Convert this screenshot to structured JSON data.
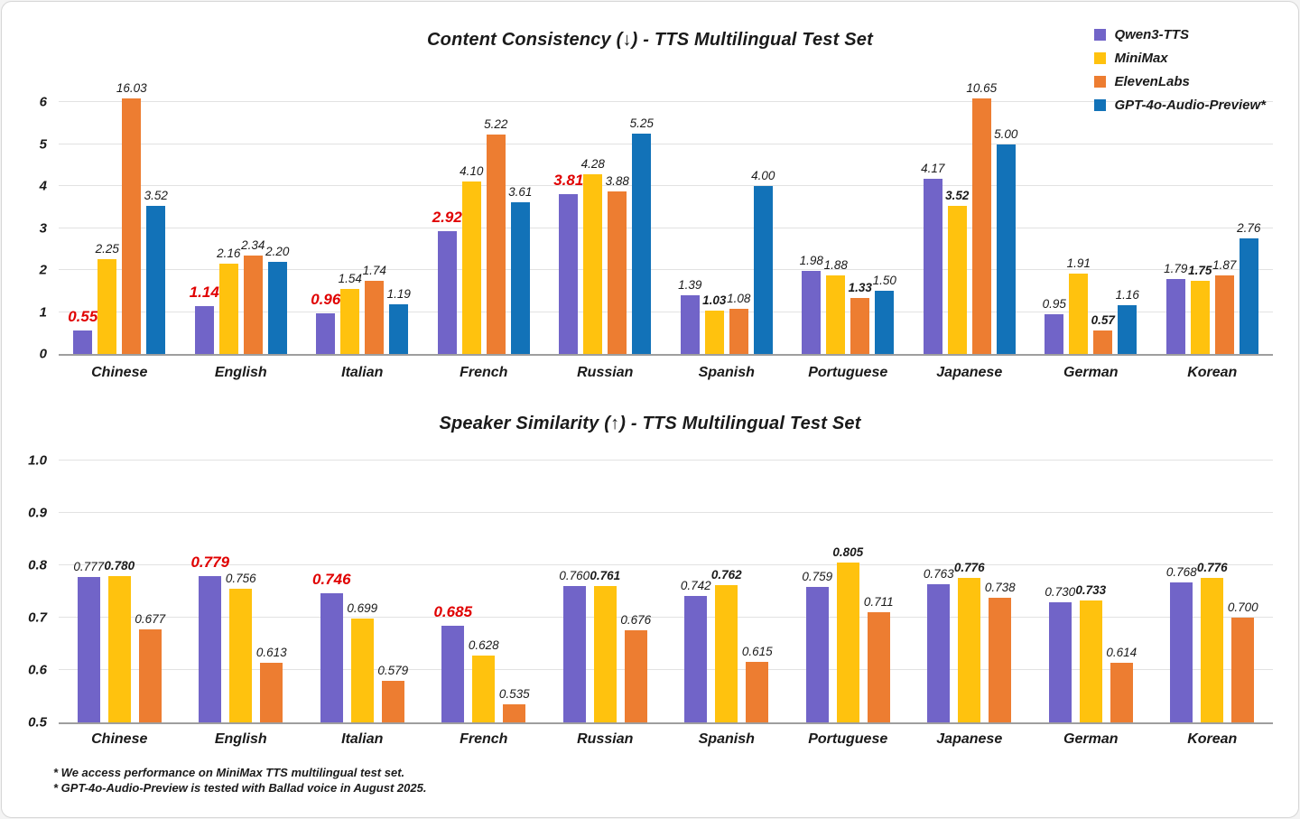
{
  "page": {
    "background": "#ffffff",
    "border_color": "#d6d6d6"
  },
  "colors": {
    "qwen3_tts": "#7164C8",
    "minimax": "#FFC20E",
    "elevenlabs": "#ED7D31",
    "gpt4o_audio_preview": "#1272B8",
    "highlight_red": "#e00000",
    "gridline": "#e2e2e2",
    "axis_line": "#9e9e9e",
    "text": "#1a1a1a"
  },
  "legend": {
    "items": [
      {
        "label": "Qwen3-TTS",
        "color": "#7164C8"
      },
      {
        "label": "MiniMax",
        "color": "#FFC20E"
      },
      {
        "label": "ElevenLabs",
        "color": "#ED7D31"
      },
      {
        "label": "GPT-4o-Audio-Preview*",
        "color": "#1272B8"
      }
    ],
    "position": "top-right"
  },
  "footnotes": [
    "* We access performance on MiniMax TTS multilingual test set.",
    "* GPT-4o-Audio-Preview is tested with Ballad voice in August 2025."
  ],
  "chart_data": [
    {
      "type": "bar",
      "title": "Content Consistency (↓) - TTS Multilingual Test Set",
      "xlabel": "",
      "ylabel": "",
      "grid": true,
      "categories": [
        "Chinese",
        "English",
        "Italian",
        "French",
        "Russian",
        "Spanish",
        "Portuguese",
        "Japanese",
        "German",
        "Korean"
      ],
      "series": [
        {
          "name": "Qwen3-TTS",
          "color": "#7164C8",
          "values": [
            0.55,
            1.14,
            0.96,
            2.92,
            3.81,
            1.39,
            1.98,
            4.17,
            0.95,
            1.79
          ],
          "label_styles": [
            "red",
            "red",
            "red",
            "red",
            "red",
            "normal",
            "normal",
            "normal",
            "normal",
            "normal"
          ]
        },
        {
          "name": "MiniMax",
          "color": "#FFC20E",
          "values": [
            2.25,
            2.16,
            1.54,
            4.1,
            4.28,
            1.03,
            1.88,
            3.52,
            1.91,
            1.75
          ],
          "label_styles": [
            "normal",
            "normal",
            "normal",
            "normal",
            "normal",
            "bold",
            "normal",
            "bold",
            "normal",
            "bold"
          ]
        },
        {
          "name": "ElevenLabs",
          "color": "#ED7D31",
          "values": [
            16.03,
            2.34,
            1.74,
            5.22,
            3.88,
            1.08,
            1.33,
            10.65,
            0.57,
            1.87
          ],
          "label_styles": [
            "normal",
            "normal",
            "normal",
            "normal",
            "normal",
            "normal",
            "bold",
            "normal",
            "bold",
            "normal"
          ]
        },
        {
          "name": "GPT-4o-Audio-Preview*",
          "color": "#1272B8",
          "values": [
            3.52,
            2.2,
            1.19,
            3.61,
            5.25,
            4.0,
            1.5,
            5.0,
            1.16,
            2.76
          ],
          "label_styles": [
            "normal",
            "normal",
            "normal",
            "normal",
            "normal",
            "normal",
            "normal",
            "normal",
            "normal",
            "normal"
          ]
        }
      ],
      "ymin": 0,
      "display_ymax": 6.09,
      "yticks": [
        {
          "value": 0,
          "label": "0"
        },
        {
          "value": 1,
          "label": "1"
        },
        {
          "value": 2,
          "label": "2"
        },
        {
          "value": 3,
          "label": "3"
        },
        {
          "value": 4,
          "label": "4"
        },
        {
          "value": 5,
          "label": "5"
        },
        {
          "value": 6,
          "label": "6"
        }
      ],
      "label_decimals": 2,
      "note": "Bars with values 16.03 and 10.65 are clipped at the top of the plot area; lower is better."
    },
    {
      "type": "bar",
      "title": "Speaker Similarity (↑) - TTS Multilingual Test Set",
      "xlabel": "",
      "ylabel": "",
      "grid": true,
      "categories": [
        "Chinese",
        "English",
        "Italian",
        "French",
        "Russian",
        "Spanish",
        "Portuguese",
        "Japanese",
        "German",
        "Korean"
      ],
      "series": [
        {
          "name": "Qwen3-TTS",
          "color": "#7164C8",
          "values": [
            0.777,
            0.779,
            0.746,
            0.685,
            0.76,
            0.742,
            0.759,
            0.763,
            0.73,
            0.768
          ],
          "label_styles": [
            "normal",
            "red",
            "red",
            "red",
            "normal",
            "normal",
            "normal",
            "normal",
            "normal",
            "normal"
          ]
        },
        {
          "name": "MiniMax",
          "color": "#FFC20E",
          "values": [
            0.78,
            0.756,
            0.699,
            0.628,
            0.761,
            0.762,
            0.805,
            0.776,
            0.733,
            0.776
          ],
          "label_styles": [
            "bold",
            "normal",
            "normal",
            "normal",
            "bold",
            "bold",
            "bold",
            "bold",
            "bold",
            "bold"
          ]
        },
        {
          "name": "ElevenLabs",
          "color": "#ED7D31",
          "values": [
            0.677,
            0.613,
            0.579,
            0.535,
            0.676,
            0.615,
            0.711,
            0.738,
            0.614,
            0.7
          ],
          "label_styles": [
            "normal",
            "normal",
            "normal",
            "normal",
            "normal",
            "normal",
            "normal",
            "normal",
            "normal",
            "normal"
          ]
        }
      ],
      "ymin": 0.5,
      "display_ymax": 1.0,
      "yticks": [
        {
          "value": 0.5,
          "label": "0.5"
        },
        {
          "value": 0.6,
          "label": "0.6"
        },
        {
          "value": 0.7,
          "label": "0.7"
        },
        {
          "value": 0.8,
          "label": "0.8"
        },
        {
          "value": 0.9,
          "label": "0.9"
        },
        {
          "value": 1.0,
          "label": "1.0"
        }
      ],
      "label_decimals": 3,
      "note": "Higher is better."
    }
  ]
}
